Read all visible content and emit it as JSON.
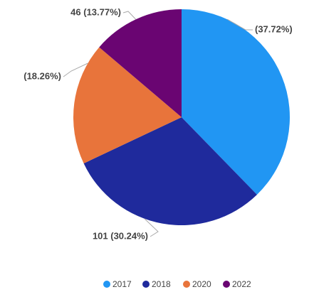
{
  "chart_data": {
    "type": "pie",
    "categories": [
      "2017",
      "2018",
      "2020",
      "2022"
    ],
    "values": [
      37.72,
      30.24,
      18.26,
      13.77
    ],
    "value_labels": [
      "(37.72%)",
      "101 (30.24%)",
      "(18.26%)",
      "46 (13.77%)"
    ],
    "colors": [
      "#2196f3",
      "#1f2a9c",
      "#e8743b",
      "#6a0572"
    ],
    "legend": "bottom"
  }
}
